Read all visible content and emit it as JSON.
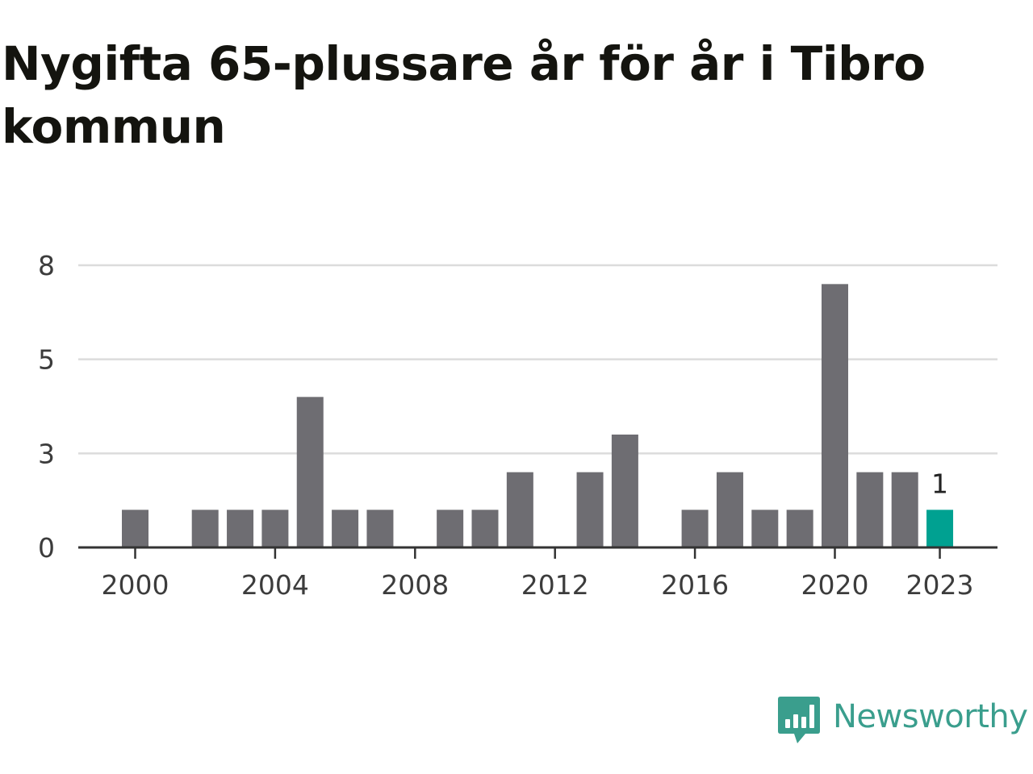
{
  "title": "Nygifta 65-plussare år för år i Tibro kommun",
  "brand": {
    "name": "Newsworthy",
    "icon": "newsworthy-logo-icon",
    "color": "#3a9e8d"
  },
  "colors": {
    "bar": "#6e6d72",
    "highlight": "#00a191",
    "grid": "#dcdcdc",
    "axis": "#333333"
  },
  "chart_data": {
    "type": "bar",
    "title": "Nygifta 65-plussare år för år i Tibro kommun",
    "xlabel": "",
    "ylabel": "",
    "categories": [
      "2000",
      "2001",
      "2002",
      "2003",
      "2004",
      "2005",
      "2006",
      "2007",
      "2008",
      "2009",
      "2010",
      "2011",
      "2012",
      "2013",
      "2014",
      "2015",
      "2016",
      "2017",
      "2018",
      "2019",
      "2020",
      "2021",
      "2022",
      "2023"
    ],
    "values": [
      1,
      0,
      1,
      1,
      1,
      4,
      1,
      1,
      0,
      1,
      1,
      2,
      0,
      2,
      3,
      0,
      1,
      2,
      1,
      1,
      7,
      2,
      2,
      1
    ],
    "highlight_category": "2023",
    "highlight_label": "1",
    "ylim": [
      0,
      7.5
    ],
    "y_ticks": [
      {
        "value": 0,
        "label": "0"
      },
      {
        "value": 2.5,
        "label": "3"
      },
      {
        "value": 5,
        "label": "5"
      },
      {
        "value": 7.5,
        "label": "8"
      }
    ],
    "x_tick_labels": [
      "2000",
      "2004",
      "2008",
      "2012",
      "2016",
      "2020",
      "2023"
    ],
    "grid": true,
    "legend": "none"
  }
}
